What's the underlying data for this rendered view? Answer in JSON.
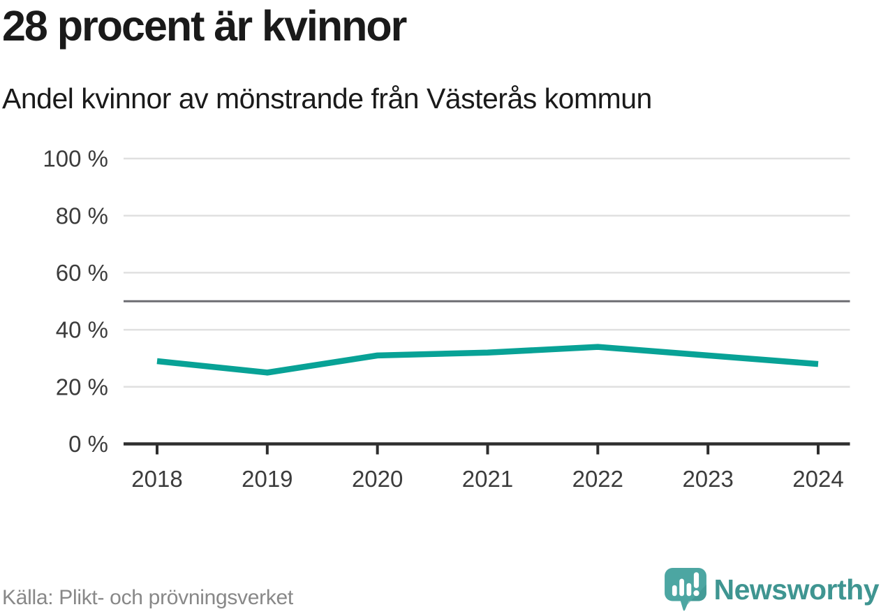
{
  "header": {
    "title": "28 procent är kvinnor",
    "subtitle": "Andel kvinnor av mönstrande från Västerås kommun"
  },
  "footer": {
    "source": "Källa: Plikt- och prövningsverket",
    "brand": "Newsworthy",
    "logo_icon": "newsworthy-speech-bubble-barchart-icon"
  },
  "colors": {
    "line": "#08a296",
    "grid": "#e0e0e0",
    "reference_line": "#6d6d72",
    "axis": "#2e2e2e",
    "text": "#1a1a1a",
    "tick_label": "#3c3c3c",
    "source_text": "#888888",
    "brand_text": "#3f9591",
    "brand_icon": "#4ca6a2",
    "brand_icon_shade": "#3d928e"
  },
  "chart_data": {
    "type": "line",
    "title": "28 procent är kvinnor",
    "subtitle": "Andel kvinnor av mönstrande från Västerås kommun",
    "x": [
      "2018",
      "2019",
      "2020",
      "2021",
      "2022",
      "2023",
      "2024"
    ],
    "series": [
      {
        "name": "Andel kvinnor av mönstrande",
        "values": [
          29,
          25,
          31,
          32,
          34,
          31,
          28
        ]
      }
    ],
    "xlabel": "",
    "ylabel": "",
    "ylim": [
      0,
      100
    ],
    "yticks": [
      0,
      20,
      40,
      60,
      80,
      100
    ],
    "ytick_format": "{v} %",
    "reference_line": 50,
    "grid": true,
    "legend": false,
    "unit": "%"
  }
}
